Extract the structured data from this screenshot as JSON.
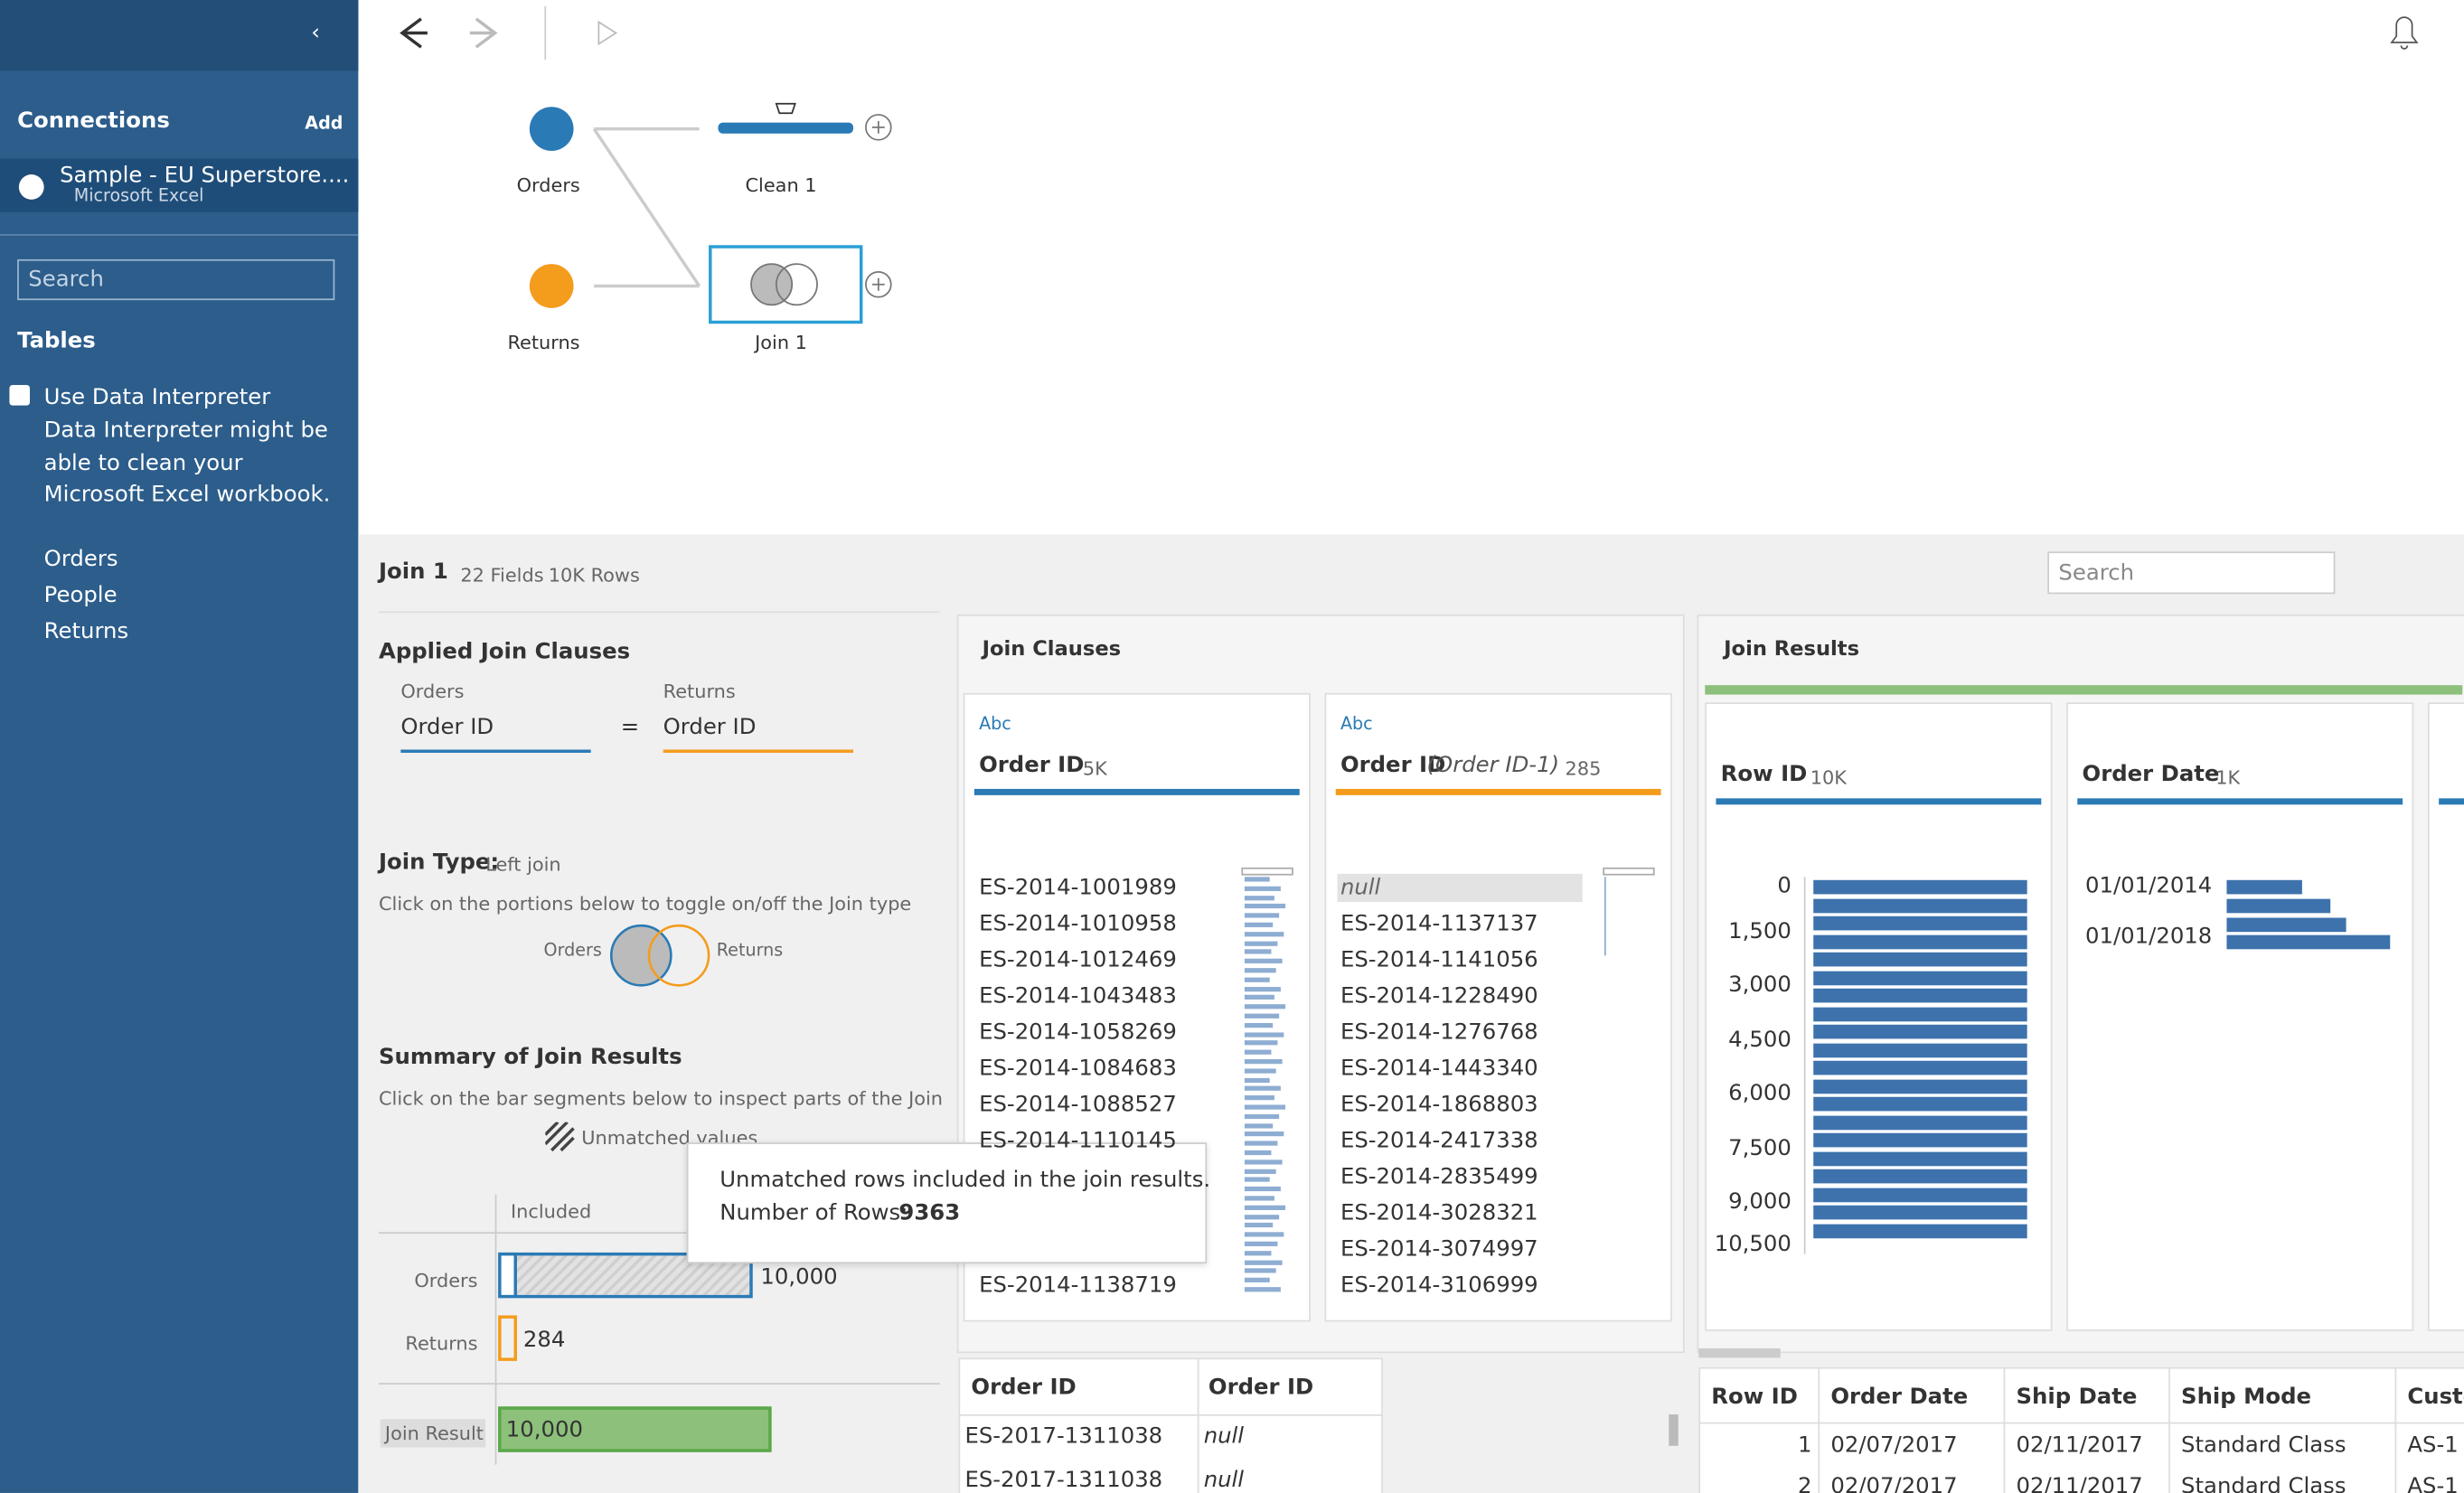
{
  "sidebar": {
    "connections_title": "Connections",
    "add": "Add",
    "connection": {
      "name": "Sample - EU Superstore....",
      "type": "Microsoft Excel"
    },
    "search_placeholder": "Search",
    "tables_title": "Tables",
    "interpreter": {
      "label": "Use Data Interpreter",
      "note": "Data Interpreter might be able to clean your Microsoft Excel workbook."
    },
    "tables": [
      "Orders",
      "People",
      "Returns"
    ]
  },
  "flow": {
    "nodes": [
      {
        "label": "Orders"
      },
      {
        "label": "Clean 1"
      },
      {
        "label": "Returns"
      },
      {
        "label": "Join 1"
      }
    ]
  },
  "profile": {
    "title": "Join 1",
    "fields": "22 Fields",
    "rows": "10K Rows",
    "search_placeholder": "Search"
  },
  "applied": {
    "title": "Applied Join Clauses",
    "left_table": "Orders",
    "right_table": "Returns",
    "left_field": "Order ID",
    "operator": "=",
    "right_field": "Order ID",
    "join_type_label": "Join Type:",
    "join_type": "Left join",
    "toggle_hint": "Click on the portions below to toggle on/off the Join type",
    "venn_left": "Orders",
    "venn_right": "Returns",
    "summary_title": "Summary of Join Results",
    "summary_hint": "Click on the bar segments below to inspect parts of the Join",
    "legend": "Unmatched values",
    "column": "Included",
    "bars": [
      {
        "label": "Orders",
        "value": "10,000"
      },
      {
        "label": "Returns",
        "value": "284"
      },
      {
        "label": "Join Result",
        "value": "10,000"
      }
    ]
  },
  "tooltip": {
    "text": "Unmatched rows included in the join results.",
    "count_label": "Number of Rows:",
    "count": "9363"
  },
  "clauses": {
    "title": "Join Clauses",
    "cards": [
      {
        "type": "Abc",
        "field": "Order ID",
        "count": "5K",
        "values": [
          "ES-2014-1001989",
          "ES-2014-1010958",
          "ES-2014-1012469",
          "ES-2014-1043483",
          "ES-2014-1058269",
          "ES-2014-1084683",
          "ES-2014-1088527",
          "ES-2014-1110145",
          "ES-2014-1138719"
        ]
      },
      {
        "type": "Abc",
        "field": "Order ID",
        "alias": "(Order ID-1)",
        "count": "285",
        "values": [
          "null",
          "ES-2014-1137137",
          "ES-2014-1141056",
          "ES-2014-1228490",
          "ES-2014-1276768",
          "ES-2014-1443340",
          "ES-2014-1868803",
          "ES-2014-2417338",
          "ES-2014-2835499",
          "ES-2014-3028321",
          "ES-2014-3074997",
          "ES-2014-3106999"
        ]
      }
    ]
  },
  "results": {
    "title": "Join Results",
    "cards": [
      {
        "field": "Row ID",
        "count": "10K",
        "axis": [
          "0",
          "1,500",
          "3,000",
          "4,500",
          "6,000",
          "7,500",
          "9,000",
          "10,500"
        ]
      },
      {
        "field": "Order Date",
        "count": "1K",
        "axis": [
          "01/01/2014",
          "01/01/2018"
        ]
      }
    ]
  },
  "clause_table": {
    "headers": [
      "Order ID",
      "Order ID"
    ],
    "rows": [
      [
        "ES-2017-1311038",
        "null"
      ],
      [
        "ES-2017-1311038",
        "null"
      ]
    ]
  },
  "result_table": {
    "headers": [
      "Row ID",
      "Order Date",
      "Ship Date",
      "Ship Mode",
      "Custo"
    ],
    "rows": [
      [
        "1",
        "02/07/2017",
        "02/11/2017",
        "Standard Class",
        "AS-1"
      ],
      [
        "2",
        "02/07/2017",
        "02/11/2017",
        "Standard Class",
        "AS-1"
      ]
    ]
  }
}
